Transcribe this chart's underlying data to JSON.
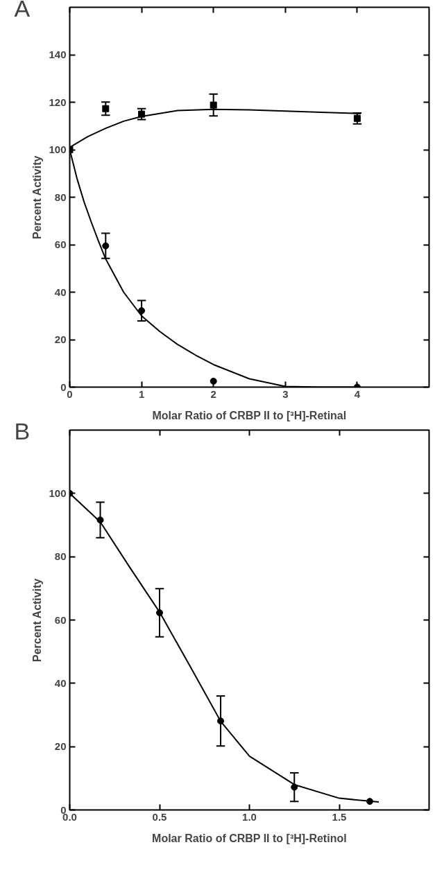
{
  "chart_data": [
    {
      "type": "scatter",
      "title": "A",
      "xlabel": "Molar Ratio of CRBP II to [³H]-Retinal",
      "ylabel": "Percent Activity",
      "xlim": [
        0,
        5
      ],
      "ylim": [
        0,
        160
      ],
      "xticks": [
        0,
        1,
        2,
        3,
        4
      ],
      "yticks": [
        0,
        20,
        40,
        60,
        80,
        100,
        120,
        140
      ],
      "grid": false,
      "series": [
        {
          "marker": "square",
          "color": "#000000",
          "x": [
            0,
            0.5,
            1,
            2,
            4
          ],
          "values": [
            100,
            117.3,
            115,
            118.8,
            113.2
          ],
          "errors": [
            null,
            2.8,
            2.3,
            4.6,
            2.3
          ]
        },
        {
          "marker": "circle",
          "color": "#000000",
          "x": [
            0.5,
            1,
            2,
            4
          ],
          "values": [
            59.5,
            32.2,
            2.5,
            0
          ],
          "errors": [
            5.3,
            4.3,
            null,
            null
          ]
        },
        {
          "type": "line",
          "marker": "none",
          "line_style": "solid",
          "color": "#000000",
          "x": [
            0,
            0.25,
            0.5,
            0.75,
            1,
            1.5,
            2,
            2.5,
            3,
            3.5,
            4.05
          ],
          "values": [
            101,
            105.5,
            109,
            112,
            114,
            116.5,
            117,
            116.8,
            116.3,
            115.8,
            115.2
          ]
        },
        {
          "type": "line",
          "marker": "none",
          "line_style": "solid",
          "color": "#000000",
          "x": [
            0,
            0.1,
            0.2,
            0.3,
            0.4,
            0.5,
            0.75,
            1,
            1.25,
            1.5,
            1.75,
            2,
            2.5,
            3,
            3.5,
            4
          ],
          "values": [
            100,
            88,
            78,
            69.5,
            61.5,
            54,
            40,
            30,
            23.5,
            18,
            13.5,
            9.5,
            3.5,
            0.3,
            0,
            0
          ]
        }
      ]
    },
    {
      "type": "scatter",
      "title": "B",
      "xlabel": "Molar Ratio of CRBP II to [³H]-Retinol",
      "ylabel": "Percent Activity",
      "xlim": [
        0,
        2
      ],
      "ylim": [
        0,
        120
      ],
      "xticks": [
        {
          "value": 0,
          "label": "0.0"
        },
        0.5,
        {
          "value": 1,
          "label": "1.0"
        },
        1.5
      ],
      "yticks": [
        0,
        20,
        40,
        60,
        80,
        100
      ],
      "grid": false,
      "series": [
        {
          "marker": "circle",
          "color": "#000000",
          "x": [
            0,
            0.17,
            0.5,
            0.84,
            1.25,
            1.67
          ],
          "values": [
            100,
            91.6,
            62.3,
            28.1,
            7.2,
            2.7
          ],
          "errors": [
            null,
            5.6,
            7.6,
            7.9,
            4.5,
            null
          ]
        },
        {
          "type": "line",
          "marker": "none",
          "line_style": "solid",
          "color": "#000000",
          "x": [
            0,
            0.17,
            0.33,
            0.5,
            0.67,
            0.84,
            1,
            1.25,
            1.5,
            1.72
          ],
          "values": [
            100,
            91,
            77,
            62.5,
            45.4,
            28,
            17,
            8,
            3.7,
            2.5
          ]
        }
      ]
    }
  ]
}
